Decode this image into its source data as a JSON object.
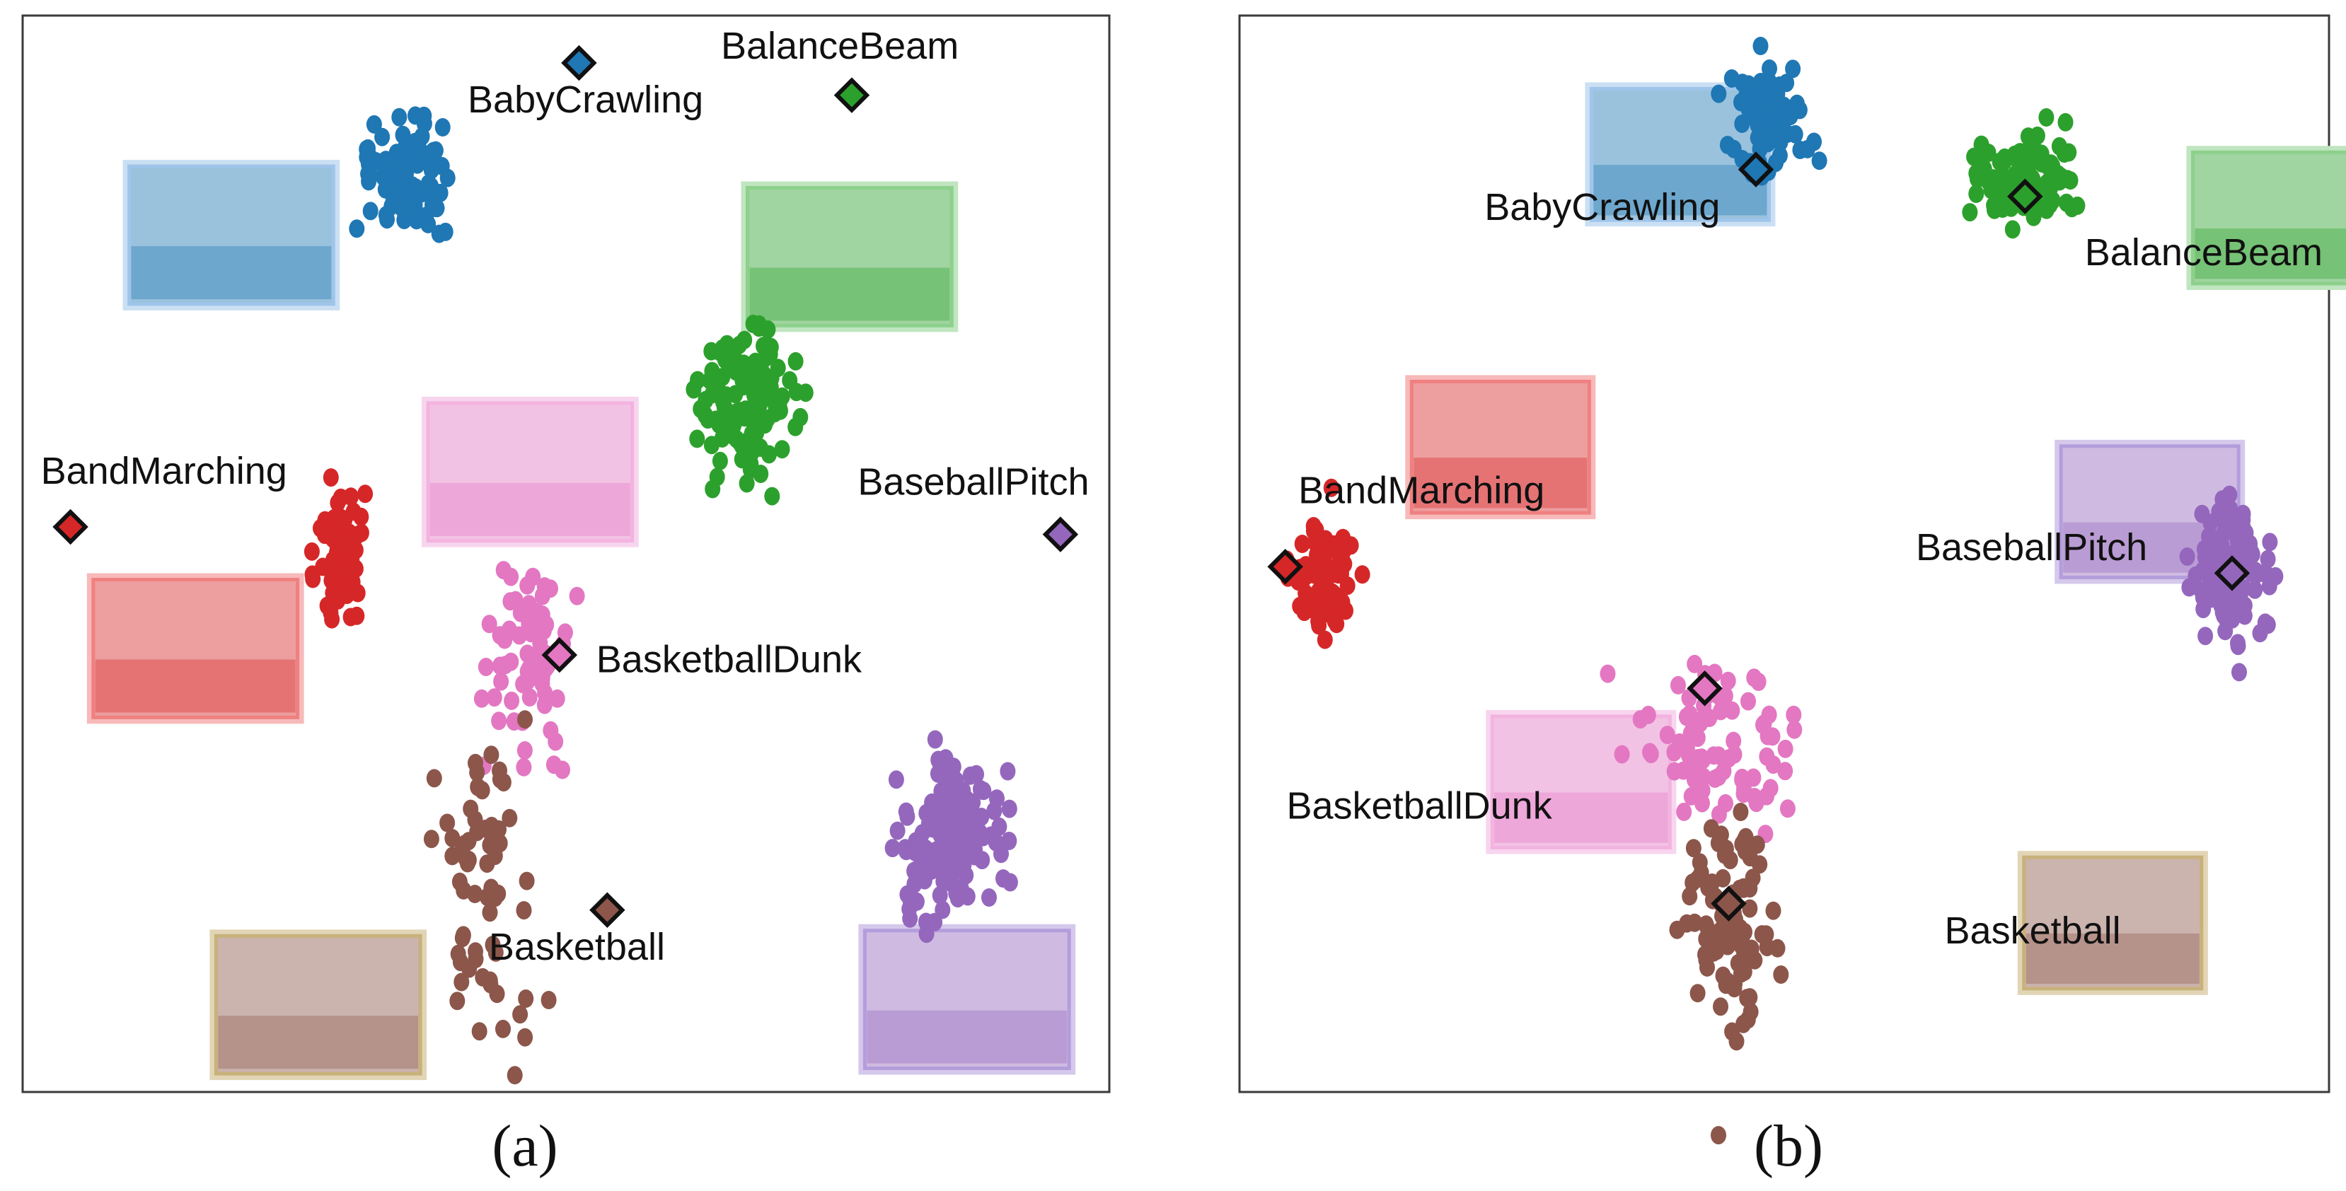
{
  "chart_data": [
    {
      "type": "scatter",
      "panel_label": "(a)",
      "grid": false,
      "legend": "none",
      "colors": {
        "BabyCrawling": "#1f77b4",
        "BalanceBeam": "#2ca02c",
        "BandMarching": "#d62728",
        "BaseballPitch": "#9467bd",
        "BasketballDunk": "#e377c2",
        "Basketball": "#8c564b"
      },
      "classes": [
        {
          "name": "BabyCrawling",
          "color": "#1f77b4",
          "thumbnail_border": "#9fc5ea",
          "center": [
            0.353,
            0.15
          ],
          "spread": [
            0.037,
            0.045
          ],
          "count": 90,
          "prototype": [
            0.512,
            0.044
          ],
          "label_pos": [
            0.518,
            0.09
          ],
          "thumb": [
            0.098,
            0.14,
            0.188,
            0.128
          ]
        },
        {
          "name": "BalanceBeam",
          "color": "#2ca02c",
          "thumbnail_border": "#8cd08c",
          "center": [
            0.667,
            0.357
          ],
          "spread": [
            0.043,
            0.058
          ],
          "count": 120,
          "prototype": [
            0.763,
            0.074
          ],
          "label_pos": [
            0.752,
            0.04
          ],
          "thumb": [
            0.667,
            0.16,
            0.188,
            0.128
          ]
        },
        {
          "name": "BandMarching",
          "color": "#d62728",
          "thumbnail_border": "#f08080",
          "center": [
            0.293,
            0.498
          ],
          "spread": [
            0.019,
            0.048
          ],
          "count": 80,
          "prototype": [
            0.044,
            0.475
          ],
          "label_pos": [
            0.13,
            0.435
          ],
          "thumb": [
            0.065,
            0.524,
            0.188,
            0.128
          ]
        },
        {
          "name": "BaseballPitch",
          "color": "#9467bd",
          "thumbnail_border": "#b39ddb",
          "center": [
            0.856,
            0.767
          ],
          "spread": [
            0.043,
            0.061
          ],
          "count": 150,
          "prototype": [
            0.955,
            0.482
          ],
          "label_pos": [
            0.875,
            0.445
          ],
          "thumb": [
            0.775,
            0.85,
            0.188,
            0.128
          ]
        },
        {
          "name": "BasketballDunk",
          "color": "#e377c2",
          "thumbnail_border": "#f3b3e0",
          "center": [
            0.468,
            0.597
          ],
          "spread": [
            0.042,
            0.078
          ],
          "count": 70,
          "prototype": [
            0.494,
            0.594
          ],
          "label_pos": [
            0.65,
            0.61
          ],
          "thumb": [
            0.373,
            0.36,
            0.188,
            0.128
          ]
        },
        {
          "name": "Basketball",
          "color": "#8c564b",
          "thumbnail_border": "#c8b27a",
          "center": [
            0.423,
            0.8
          ],
          "spread": [
            0.037,
            0.14
          ],
          "count": 65,
          "prototype": [
            0.538,
            0.831
          ],
          "label_pos": [
            0.51,
            0.877
          ],
          "thumb": [
            0.178,
            0.855,
            0.188,
            0.128
          ]
        }
      ]
    },
    {
      "type": "scatter",
      "panel_label": "(b)",
      "grid": false,
      "legend": "none",
      "colors": {
        "BabyCrawling": "#1f77b4",
        "BalanceBeam": "#2ca02c",
        "BandMarching": "#d62728",
        "BaseballPitch": "#9467bd",
        "BasketballDunk": "#e377c2",
        "Basketball": "#8c564b"
      },
      "classes": [
        {
          "name": "BabyCrawling",
          "color": "#1f77b4",
          "thumbnail_border": "#9fc5ea",
          "center": [
            0.487,
            0.092
          ],
          "spread": [
            0.028,
            0.048
          ],
          "count": 80,
          "prototype": [
            0.474,
            0.143
          ],
          "label_pos": [
            0.333,
            0.19
          ],
          "thumb": [
            0.323,
            0.068,
            0.163,
            0.122
          ]
        },
        {
          "name": "BalanceBeam",
          "color": "#2ca02c",
          "thumbnail_border": "#8cd08c",
          "center": [
            0.72,
            0.153
          ],
          "spread": [
            0.038,
            0.035
          ],
          "count": 110,
          "prototype": [
            0.721,
            0.168
          ],
          "label_pos": [
            0.885,
            0.232
          ],
          "thumb": [
            0.875,
            0.127,
            0.163,
            0.122
          ]
        },
        {
          "name": "BandMarching",
          "color": "#d62728",
          "thumbnail_border": "#f08080",
          "center": [
            0.079,
            0.52
          ],
          "spread": [
            0.028,
            0.048
          ],
          "count": 80,
          "prototype": [
            0.042,
            0.512
          ],
          "label_pos": [
            0.167,
            0.453
          ],
          "thumb": [
            0.158,
            0.34,
            0.163,
            0.122
          ]
        },
        {
          "name": "BaseballPitch",
          "color": "#9467bd",
          "thumbnail_border": "#b39ddb",
          "center": [
            0.911,
            0.515
          ],
          "spread": [
            0.035,
            0.06
          ],
          "count": 110,
          "prototype": [
            0.911,
            0.518
          ],
          "label_pos": [
            0.727,
            0.506
          ],
          "thumb": [
            0.754,
            0.4,
            0.163,
            0.122
          ]
        },
        {
          "name": "BasketballDunk",
          "color": "#e377c2",
          "thumbnail_border": "#f3b3e0",
          "center": [
            0.44,
            0.67
          ],
          "spread": [
            0.06,
            0.07
          ],
          "count": 80,
          "prototype": [
            0.427,
            0.625
          ],
          "label_pos": [
            0.165,
            0.746
          ],
          "thumb": [
            0.232,
            0.651,
            0.163,
            0.122
          ]
        },
        {
          "name": "Basketball",
          "color": "#8c564b",
          "thumbnail_border": "#c8b27a",
          "center": [
            0.448,
            0.84
          ],
          "spread": [
            0.034,
            0.09
          ],
          "count": 100,
          "prototype": [
            0.449,
            0.825
          ],
          "label_pos": [
            0.728,
            0.862
          ],
          "thumb": [
            0.72,
            0.782,
            0.163,
            0.122
          ]
        }
      ]
    }
  ]
}
